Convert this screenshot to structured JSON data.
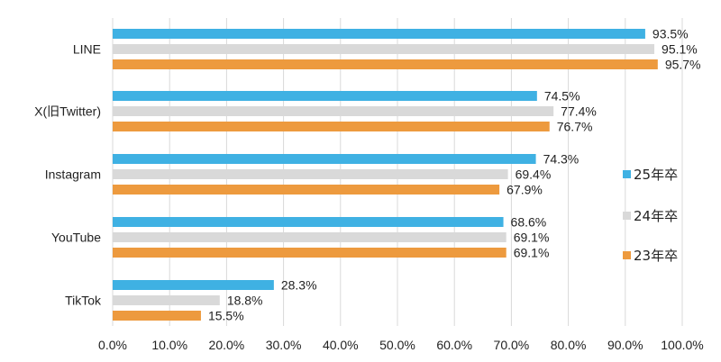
{
  "chart_data": {
    "type": "bar",
    "orientation": "horizontal",
    "categories": [
      "LINE",
      "X(旧Twitter)",
      "Instagram",
      "YouTube",
      "TikTok"
    ],
    "series": [
      {
        "name": "25年卒",
        "color": "#3fb1e3",
        "values": [
          93.5,
          74.5,
          74.3,
          68.6,
          28.3
        ],
        "labels": [
          "93.5%",
          "74.5%",
          "74.3%",
          "68.6%",
          "28.3%"
        ]
      },
      {
        "name": "24年卒",
        "color": "#d9d9d9",
        "values": [
          95.1,
          77.4,
          69.4,
          69.1,
          18.8
        ],
        "labels": [
          "95.1%",
          "77.4%",
          "69.4%",
          "69.1%",
          "18.8%"
        ]
      },
      {
        "name": "23年卒",
        "color": "#ed9a3e",
        "values": [
          95.7,
          76.7,
          67.9,
          69.1,
          15.5
        ],
        "labels": [
          "95.7%",
          "76.7%",
          "67.9%",
          "69.1%",
          "15.5%"
        ]
      }
    ],
    "xlim": [
      0,
      100
    ],
    "xticks": [
      "0.0%",
      "10.0%",
      "20.0%",
      "30.0%",
      "40.0%",
      "50.0%",
      "60.0%",
      "70.0%",
      "80.0%",
      "90.0%",
      "100.0%"
    ],
    "grid": true,
    "legend_position": "right"
  }
}
